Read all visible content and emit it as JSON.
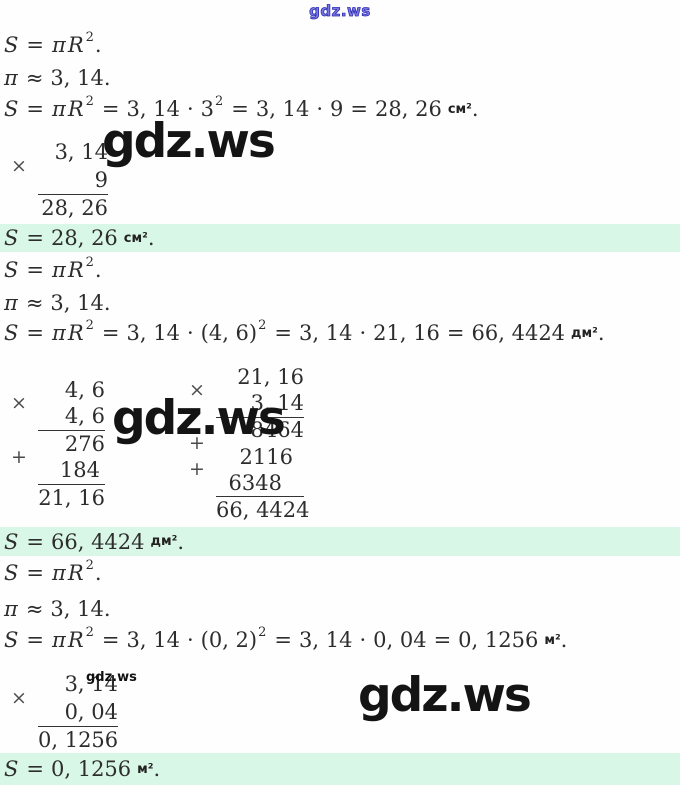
{
  "page": {
    "background": "#fdfefd",
    "highlight_color": "#d9f7e6",
    "watermark_top_color": "#2b2ab5",
    "watermark_big_color": "#141414"
  },
  "watermarks": {
    "top": "gdz.ws",
    "block1_big": "gdz.ws",
    "block2_big": "gdz.ws",
    "block3_small": "gdz.ws",
    "block3_big": "gdz.ws"
  },
  "formulas": {
    "area": [
      [
        "v",
        "S"
      ],
      [
        "o",
        "="
      ],
      [
        "v",
        "π"
      ],
      [
        "v",
        "R"
      ],
      [
        "s",
        "2"
      ],
      [
        "n",
        "."
      ]
    ],
    "pi_approx": [
      [
        "v",
        "π"
      ],
      [
        "o",
        "≈"
      ],
      [
        "n",
        "3, 14."
      ]
    ],
    "calc1": [
      [
        "v",
        "S"
      ],
      [
        "o",
        "="
      ],
      [
        "v",
        "π"
      ],
      [
        "v",
        "R"
      ],
      [
        "s",
        "2"
      ],
      [
        "o",
        "="
      ],
      [
        "n",
        "3, 14"
      ],
      [
        "o",
        "·"
      ],
      [
        "n",
        "3"
      ],
      [
        "s",
        "2"
      ],
      [
        "o",
        "="
      ],
      [
        "n",
        "3, 14"
      ],
      [
        "o",
        "·"
      ],
      [
        "n",
        "9"
      ],
      [
        "o",
        "="
      ],
      [
        "n",
        "28, 26"
      ],
      [
        "u",
        "см²"
      ],
      [
        "n",
        "."
      ]
    ],
    "calc2": [
      [
        "v",
        "S"
      ],
      [
        "o",
        "="
      ],
      [
        "v",
        "π"
      ],
      [
        "v",
        "R"
      ],
      [
        "s",
        "2"
      ],
      [
        "o",
        "="
      ],
      [
        "n",
        "3, 14"
      ],
      [
        "o",
        "·"
      ],
      [
        "n",
        "(4, 6)"
      ],
      [
        "s",
        "2"
      ],
      [
        "o",
        "="
      ],
      [
        "n",
        "3, 14"
      ],
      [
        "o",
        "·"
      ],
      [
        "n",
        "21, 16"
      ],
      [
        "o",
        "="
      ],
      [
        "n",
        "66, 4424"
      ],
      [
        "u",
        "дм²"
      ],
      [
        "n",
        "."
      ]
    ],
    "calc3": [
      [
        "v",
        "S"
      ],
      [
        "o",
        "="
      ],
      [
        "v",
        "π"
      ],
      [
        "v",
        "R"
      ],
      [
        "s",
        "2"
      ],
      [
        "o",
        "="
      ],
      [
        "n",
        "3, 14"
      ],
      [
        "o",
        "·"
      ],
      [
        "n",
        "(0, 2)"
      ],
      [
        "s",
        "2"
      ],
      [
        "o",
        "="
      ],
      [
        "n",
        "3, 14"
      ],
      [
        "o",
        "·"
      ],
      [
        "n",
        "0, 04"
      ],
      [
        "o",
        "="
      ],
      [
        "n",
        "0, 1256"
      ],
      [
        "u",
        "м²"
      ],
      [
        "n",
        "."
      ]
    ],
    "result1": [
      [
        "v",
        "S"
      ],
      [
        "o",
        "="
      ],
      [
        "n",
        "28, 26"
      ],
      [
        "u",
        "см²"
      ],
      [
        "n",
        "."
      ]
    ],
    "result2": [
      [
        "v",
        "S"
      ],
      [
        "o",
        "="
      ],
      [
        "n",
        "66, 4424"
      ],
      [
        "u",
        "дм²"
      ],
      [
        "n",
        "."
      ]
    ],
    "result3": [
      [
        "v",
        "S"
      ],
      [
        "o",
        "="
      ],
      [
        "n",
        "0, 1256"
      ],
      [
        "u",
        "м²"
      ],
      [
        "n",
        "."
      ]
    ]
  },
  "mult_blocks": {
    "m1": {
      "rows": [
        {
          "sign": "",
          "text": "3, 14"
        },
        {
          "sign": "×",
          "text": "9",
          "underline": true,
          "raise": true
        },
        {
          "sign": "",
          "text": "28, 26"
        }
      ]
    },
    "m2a": {
      "rows": [
        {
          "sign": "",
          "text": "4, 6"
        },
        {
          "sign": "×",
          "text": "4, 6",
          "underline": true,
          "raise": true
        },
        {
          "sign": "",
          "text": "276"
        },
        {
          "sign": "+",
          "text": "184",
          "underline": true,
          "raise": true,
          "shift": 1
        },
        {
          "sign": "",
          "text": "21, 16"
        }
      ]
    },
    "m2b": {
      "rows": [
        {
          "sign": "",
          "text": "21, 16"
        },
        {
          "sign": "×",
          "text": "3, 14",
          "underline": true,
          "raise": true
        },
        {
          "sign": "",
          "text": "8464"
        },
        {
          "sign": "+",
          "text": "2116",
          "raise": true,
          "shift": 1
        },
        {
          "sign": "+",
          "text": "6348",
          "underline": true,
          "raise": true,
          "shift": 2
        },
        {
          "sign": "",
          "text": "66, 4424"
        }
      ]
    },
    "m3": {
      "rows": [
        {
          "sign": "",
          "text": "3, 14"
        },
        {
          "sign": "×",
          "text": "0, 04",
          "underline": true,
          "raise": true
        },
        {
          "sign": "",
          "text": "0, 1256"
        }
      ]
    }
  }
}
